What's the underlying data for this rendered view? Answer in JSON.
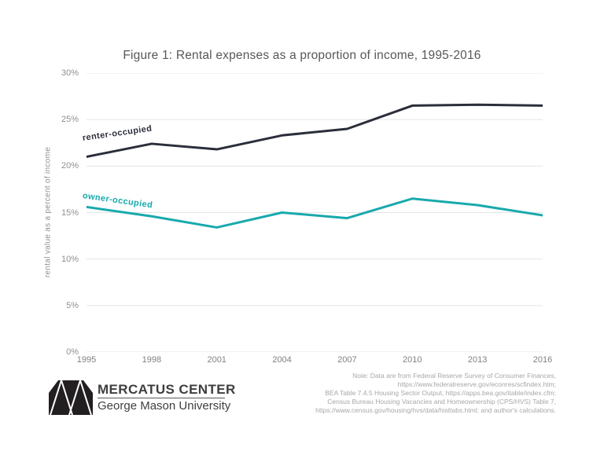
{
  "title": "Figure 1: Rental expenses as a proportion of income, 1995-2016",
  "chart_data": {
    "type": "line",
    "x": [
      "1995",
      "1998",
      "2001",
      "2004",
      "2007",
      "2010",
      "2013",
      "2016"
    ],
    "series": [
      {
        "name": "renter-occupied",
        "color": "#2b2e3a",
        "values": [
          21.0,
          22.4,
          21.8,
          23.3,
          24.0,
          26.5,
          26.6,
          26.5
        ]
      },
      {
        "name": "owner-occupied",
        "color": "#19a9ad",
        "values": [
          15.6,
          14.6,
          13.4,
          15.0,
          14.4,
          16.5,
          15.8,
          14.7
        ]
      }
    ],
    "title": "Figure 1: Rental expenses as a proportion of income, 1995-2016",
    "xlabel": "",
    "ylabel": "rental value as a percent of income",
    "ylim": [
      0,
      30
    ],
    "yticks": [
      0,
      5,
      10,
      15,
      20,
      25,
      30
    ],
    "ytick_suffix": "%",
    "grid": "horizontal",
    "gridline_color": "#e4e5e6",
    "legend_position": "inline-labels"
  },
  "annotations": {
    "renter_label": "renter-occupied",
    "owner_label": "owner-occupied"
  },
  "footer": {
    "logo_name": "MERCATUS CENTER",
    "logo_sub": "George Mason University",
    "note_lines": [
      "Note: Data are from Federal Reserve Survey of Consumer Finances,",
      "https://www.federalreserve.gov/econres/scfindex.htm;",
      "BEA Table 7.4.5 Housing Sector Output, https://apps.bea.gov/itable/index.cfm;",
      "Census Bureau Housing Vacancies and Homeownership (CPS/HVS) Table 7,",
      "https://www.census.gov/housing/hvs/data/histtabs.html; and author's calculations."
    ]
  }
}
